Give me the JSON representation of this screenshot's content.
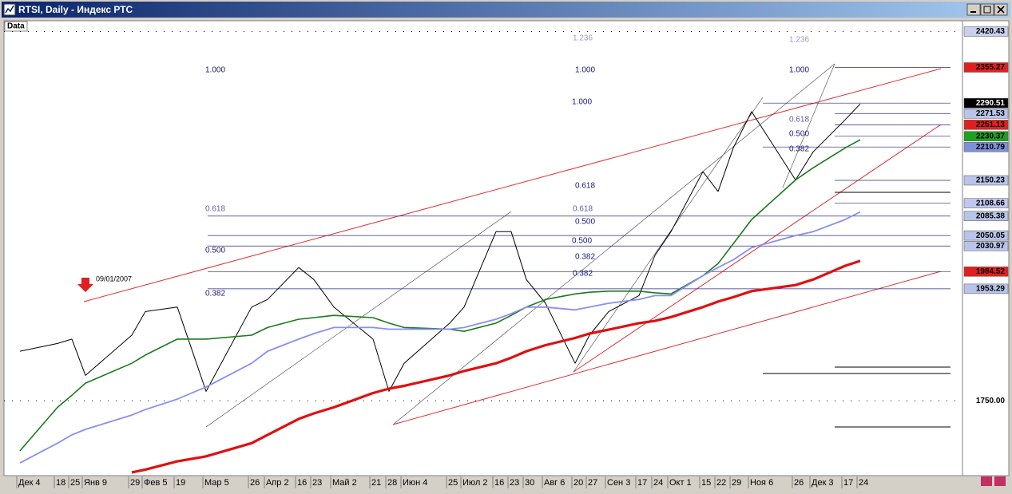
{
  "window_title": "RTSI, Daily - Индекс РТС",
  "panel_label": "Data",
  "chart_data": {
    "type": "line",
    "categories": [
      "Дек 4",
      "18",
      "25",
      "Янв 9",
      "29",
      "Фев 5",
      "19",
      "Мар 5",
      "26",
      "Апр 2",
      "16",
      "23",
      "Май 2",
      "21",
      "28",
      "Июн 4",
      "25",
      "Июл 2",
      "16",
      "23",
      "30",
      "Авг 6",
      "20",
      "27",
      "Сен 3",
      "17",
      "24",
      "Окт 1",
      "15",
      "22",
      "29",
      "Ноя 6",
      "26",
      "Дек 3",
      "17",
      "24"
    ],
    "series": [
      {
        "color": "#000000",
        "values": [
          1840,
          1854,
          1862,
          1796,
          1869,
          1912,
          1920,
          1767,
          1920,
          1934,
          1992,
          1970,
          1920,
          1862,
          1767,
          1818,
          1891,
          1920,
          2057,
          2057,
          1970,
          1927,
          1818,
          1869,
          1912,
          1941,
          2014,
          2057,
          2166,
          2130,
          2209,
          2275,
          2151,
          2202,
          2260,
          2289
        ]
      },
      {
        "color": "#1a7a1a",
        "values": [
          1659,
          1738,
          1760,
          1782,
          1818,
          1833,
          1862,
          1862,
          1869,
          1883,
          1898,
          1901,
          1905,
          1901,
          1891,
          1883,
          1880,
          1876,
          1891,
          1905,
          1920,
          1934,
          1944,
          1947,
          1949,
          1949,
          1946,
          1944,
          1977,
          1999,
          2035,
          2079,
          2151,
          2173,
          2209,
          2224
        ]
      },
      {
        "color": "#8a8ef0",
        "values": [
          1637,
          1673,
          1688,
          1698,
          1724,
          1734,
          1753,
          1775,
          1818,
          1840,
          1862,
          1872,
          1883,
          1883,
          1880,
          1880,
          1880,
          1883,
          1898,
          1908,
          1920,
          1920,
          1915,
          1920,
          1927,
          1934,
          1941,
          1941,
          1977,
          1992,
          2006,
          2028,
          2050,
          2057,
          2079,
          2093
        ]
      },
      {
        "color": "#e01010",
        "values": [
          null,
          null,
          null,
          null,
          1620,
          1625,
          1640,
          1649,
          1673,
          1688,
          1717,
          1727,
          1738,
          1764,
          1772,
          1777,
          1796,
          1804,
          1818,
          1828,
          1840,
          1851,
          1864,
          1872,
          1879,
          1891,
          1895,
          1902,
          1920,
          1930,
          1938,
          1949,
          1960,
          1970,
          1995,
          2004
        ]
      }
    ],
    "ylim": [
      1614,
      2427
    ],
    "yticks": [
      2420.43,
      2355.27,
      2290.51,
      2271.53,
      2251.13,
      2230.37,
      2210.79,
      2150.23,
      2108.66,
      2085.38,
      2050.05,
      2030.97,
      1984.52,
      1953.29,
      {
        "value": 1750,
        "label": "1750.00"
      }
    ],
    "ytick_colors": [
      "#c8d0ec",
      "#e02020",
      "#000000",
      "#b8c4e8",
      "#e02020",
      "#20a020",
      "#8090d8",
      "#b8c4e8",
      "#c0c8f0",
      "#b8c4e8",
      "#b8c4e8",
      "#b8c4e8",
      "#e02020",
      "#b8c4e8",
      "#ffffff"
    ],
    "annotations": [
      "09/01/2007",
      "1.000",
      "0.618",
      "0.500",
      "0.382",
      "1.236",
      "1.000",
      "1.000",
      "0.618",
      "0.618",
      "0.500",
      "0.500",
      "0.382",
      "0.382",
      "1.236",
      "1.000",
      "0.618",
      "0.500",
      "0.382"
    ]
  }
}
